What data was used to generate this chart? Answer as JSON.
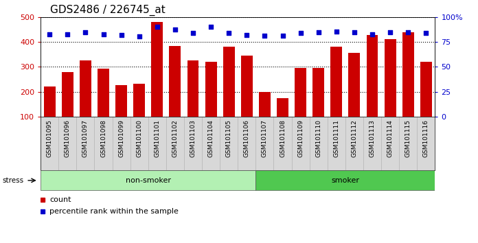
{
  "title": "GDS2486 / 226745_at",
  "categories": [
    "GSM101095",
    "GSM101096",
    "GSM101097",
    "GSM101098",
    "GSM101099",
    "GSM101100",
    "GSM101101",
    "GSM101102",
    "GSM101103",
    "GSM101104",
    "GSM101105",
    "GSM101106",
    "GSM101107",
    "GSM101108",
    "GSM101109",
    "GSM101110",
    "GSM101111",
    "GSM101112",
    "GSM101113",
    "GSM101114",
    "GSM101115",
    "GSM101116"
  ],
  "counts": [
    220,
    278,
    325,
    293,
    226,
    231,
    480,
    385,
    325,
    320,
    380,
    345,
    200,
    173,
    295,
    295,
    382,
    355,
    427,
    410,
    440,
    320
  ],
  "percentiles": [
    430,
    430,
    440,
    430,
    427,
    422,
    460,
    450,
    435,
    460,
    435,
    427,
    426,
    426,
    435,
    438,
    442,
    438,
    430,
    438,
    440,
    435
  ],
  "bar_color": "#cc0000",
  "dot_color": "#0000cc",
  "ylim_left": [
    100,
    500
  ],
  "ylim_right": [
    0,
    100
  ],
  "yticks_left": [
    100,
    200,
    300,
    400,
    500
  ],
  "yticks_right": [
    0,
    25,
    50,
    75,
    100
  ],
  "ytick_labels_right": [
    "0",
    "25",
    "50",
    "75",
    "100%"
  ],
  "groups": [
    {
      "label": "non-smoker",
      "start": 0,
      "end": 12,
      "color": "#b3f0b3"
    },
    {
      "label": "smoker",
      "start": 12,
      "end": 22,
      "color": "#50c850"
    }
  ],
  "stress_label": "stress",
  "legend_count": "count",
  "legend_percentile": "percentile rank within the sample",
  "background_color": "#ffffff",
  "plot_bg_color": "#ffffff",
  "tick_bg_color": "#d8d8d8",
  "grid_color": "#000000",
  "title_fontsize": 11,
  "tick_fontsize": 6.5,
  "axis_label_color_left": "#cc0000",
  "axis_label_color_right": "#0000cc",
  "n_nonsmoker": 12,
  "n_total": 22
}
